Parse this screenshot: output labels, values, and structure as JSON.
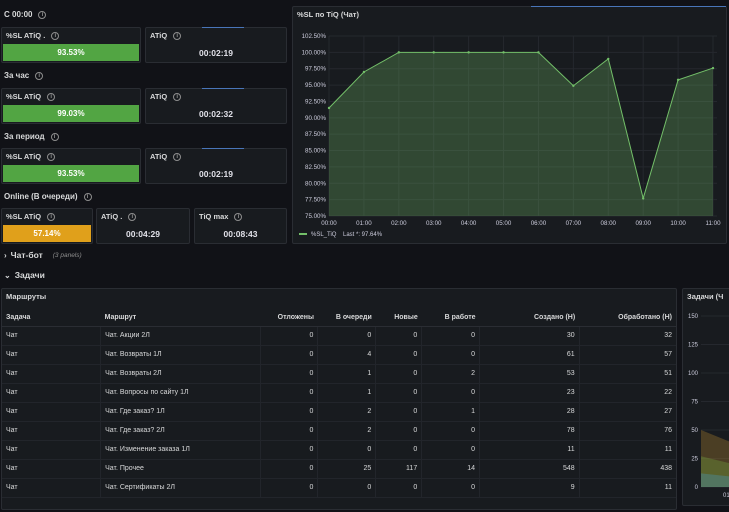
{
  "sections": {
    "since_midnight": "С 00:00",
    "per_hour": "За час",
    "per_period": "За период",
    "online": "Online (В очереди)",
    "chatbot": "Чат-бот",
    "chatbot_count": "(3 panels)",
    "tasks": "Задачи"
  },
  "stats": {
    "r1_sl_title": "%SL ATiQ .",
    "r1_sl_value": "93.53%",
    "r1_atiq_title": "ATiQ",
    "r1_atiq_value": "00:02:19",
    "r2_sl_title": "%SL ATiQ",
    "r2_sl_value": "99.03%",
    "r2_atiq_title": "ATiQ",
    "r2_atiq_value": "00:02:32",
    "r3_sl_title": "%SL ATiQ",
    "r3_sl_value": "93.53%",
    "r3_atiq_title": "ATiQ",
    "r3_atiq_value": "00:02:19",
    "r4_sl_title": "%SL ATiQ",
    "r4_sl_value": "57.14%",
    "r4_atiq_title": "ATiQ .",
    "r4_atiq_value": "00:04:29",
    "r4_tiq_title": "TiQ max",
    "r4_tiq_value": "00:08:43"
  },
  "colors": {
    "good": "#52a543",
    "warn": "#e0a01b",
    "series": "#73bf69"
  },
  "chart_data": {
    "type": "area",
    "title": "%SL по TiQ (Чат)",
    "x": [
      "00:00",
      "01:00",
      "02:00",
      "03:00",
      "04:00",
      "05:00",
      "06:00",
      "07:00",
      "08:00",
      "09:00",
      "10:00",
      "11:00"
    ],
    "y_ticks": [
      "102.50%",
      "100.00%",
      "97.50%",
      "95.00%",
      "92.50%",
      "90.00%",
      "87.50%",
      "85.00%",
      "82.50%",
      "80.00%",
      "77.50%",
      "75.00%"
    ],
    "ylim": [
      75,
      102.5
    ],
    "series": [
      {
        "name": "%SL_TiQ",
        "values": [
          91.5,
          97.0,
          100.0,
          100.0,
          100.0,
          100.0,
          100.0,
          94.9,
          99.0,
          77.7,
          95.8,
          97.6
        ]
      }
    ],
    "legend": {
      "label": "%SL_TiQ",
      "last": "Last *: 97.64%"
    },
    "legend_position": "bottom-left",
    "grid": true
  },
  "table": {
    "title": "Маршруты",
    "headers": [
      "Задача",
      "Маршрут",
      "Отложены",
      "В очереди",
      "Новые",
      "В работе",
      "Создано (Н)",
      "Обработано (Н)"
    ],
    "rows": [
      [
        "Чат",
        "Чат. Акции 2Л",
        "0",
        "0",
        "0",
        "0",
        "30",
        "32"
      ],
      [
        "Чат",
        "Чат. Возвраты 1Л",
        "0",
        "4",
        "0",
        "0",
        "61",
        "57"
      ],
      [
        "Чат",
        "Чат. Возвраты 2Л",
        "0",
        "1",
        "0",
        "2",
        "53",
        "51"
      ],
      [
        "Чат",
        "Чат. Вопросы по сайту 1Л",
        "0",
        "1",
        "0",
        "0",
        "23",
        "22"
      ],
      [
        "Чат",
        "Чат. Где заказ? 1Л",
        "0",
        "2",
        "0",
        "1",
        "28",
        "27"
      ],
      [
        "Чат",
        "Чат. Где заказ? 2Л",
        "0",
        "2",
        "0",
        "0",
        "78",
        "76"
      ],
      [
        "Чат",
        "Чат. Изменение заказа 1Л",
        "0",
        "0",
        "0",
        "0",
        "11",
        "11"
      ],
      [
        "Чат",
        "Чат. Прочее",
        "0",
        "25",
        "117",
        "14",
        "548",
        "438"
      ],
      [
        "Чат",
        "Чат. Сертификаты 2Л",
        "0",
        "0",
        "0",
        "0",
        "9",
        "11"
      ]
    ]
  },
  "side_chart": {
    "title": "Задачи (Ч",
    "y_ticks": [
      "150",
      "125",
      "100",
      "75",
      "50",
      "25",
      "0"
    ],
    "x_tick": "01"
  }
}
